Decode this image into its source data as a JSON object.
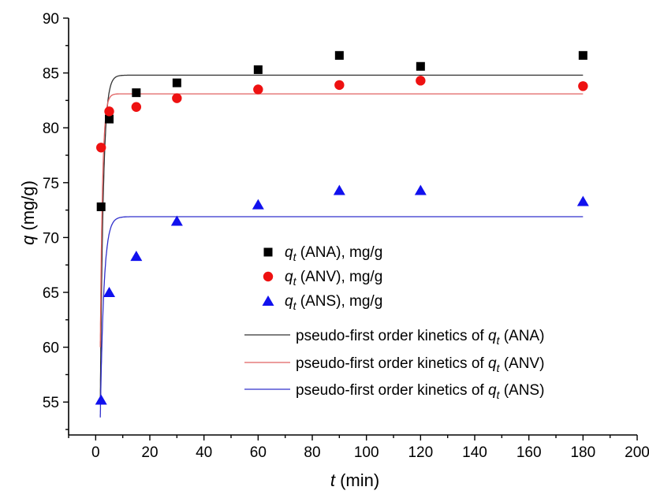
{
  "chart_data": {
    "type": "scatter",
    "xlabel": "t (min)",
    "xlabel_var": "t",
    "xlabel_unit": " (min)",
    "ylabel": "q (mg/g)",
    "ylabel_var": "q",
    "ylabel_unit": " (mg/g)",
    "xlim": [
      -10,
      200
    ],
    "ylim": [
      52,
      90
    ],
    "xticks": [
      0,
      20,
      40,
      60,
      80,
      100,
      120,
      140,
      160,
      180,
      200
    ],
    "yticks": [
      55,
      60,
      65,
      70,
      75,
      80,
      85,
      90
    ],
    "grid": false,
    "legend_position": "center-right",
    "series": [
      {
        "name": "q_t (ANA), mg/g",
        "legend": {
          "var": "q",
          "sub": "t",
          "text": " (ANA), mg/g"
        },
        "marker": "square",
        "color": "#000000",
        "x": [
          2,
          5,
          15,
          30,
          60,
          90,
          120,
          180
        ],
        "y": [
          72.8,
          80.8,
          83.2,
          84.1,
          85.3,
          86.6,
          85.6,
          86.6
        ]
      },
      {
        "name": "q_t (ANV), mg/g",
        "legend": {
          "var": "q",
          "sub": "t",
          "text": " (ANV), mg/g"
        },
        "marker": "circle",
        "color": "#ee1111",
        "x": [
          2,
          5,
          15,
          30,
          60,
          90,
          120,
          180
        ],
        "y": [
          78.2,
          81.5,
          81.9,
          82.7,
          83.5,
          83.9,
          84.3,
          83.8
        ]
      },
      {
        "name": "q_t (ANS), mg/g",
        "legend": {
          "var": "q",
          "sub": "t",
          "text": " (ANS), mg/g"
        },
        "marker": "triangle",
        "color": "#1111ee",
        "x": [
          2,
          5,
          15,
          30,
          60,
          90,
          120,
          180
        ],
        "y": [
          55.2,
          65.0,
          68.3,
          71.5,
          73.0,
          74.3,
          74.3,
          73.3
        ]
      }
    ],
    "fits": [
      {
        "name": "pseudo-first order kinetics of q_t (ANA)",
        "legend": {
          "pre": "pseudo-first order kinetics of ",
          "var": "q",
          "sub": "t",
          "post": " (ANA)"
        },
        "color": "#333333",
        "model": "pseudo-first-order",
        "qe": 84.8,
        "k1": 0.9,
        "t0": 1.7,
        "y0": 55,
        "x_range": [
          1.7,
          180
        ]
      },
      {
        "name": "pseudo-first order kinetics of q_t (ANV)",
        "legend": {
          "pre": "pseudo-first order kinetics of ",
          "var": "q",
          "sub": "t",
          "post": " (ANV)"
        },
        "color": "#e06060",
        "model": "pseudo-first-order",
        "qe": 83.1,
        "k1": 1.2,
        "t0": 1.7,
        "y0": 60,
        "x_range": [
          1.7,
          180
        ]
      },
      {
        "name": "pseudo-first order kinetics of q_t (ANS)",
        "legend": {
          "pre": "pseudo-first order kinetics of ",
          "var": "q",
          "sub": "t",
          "post": " (ANS)"
        },
        "color": "#3030cc",
        "model": "pseudo-first-order",
        "qe": 71.9,
        "k1": 0.75,
        "t0": 1.7,
        "y0": 53.6,
        "x_range": [
          1.7,
          180
        ]
      }
    ]
  }
}
